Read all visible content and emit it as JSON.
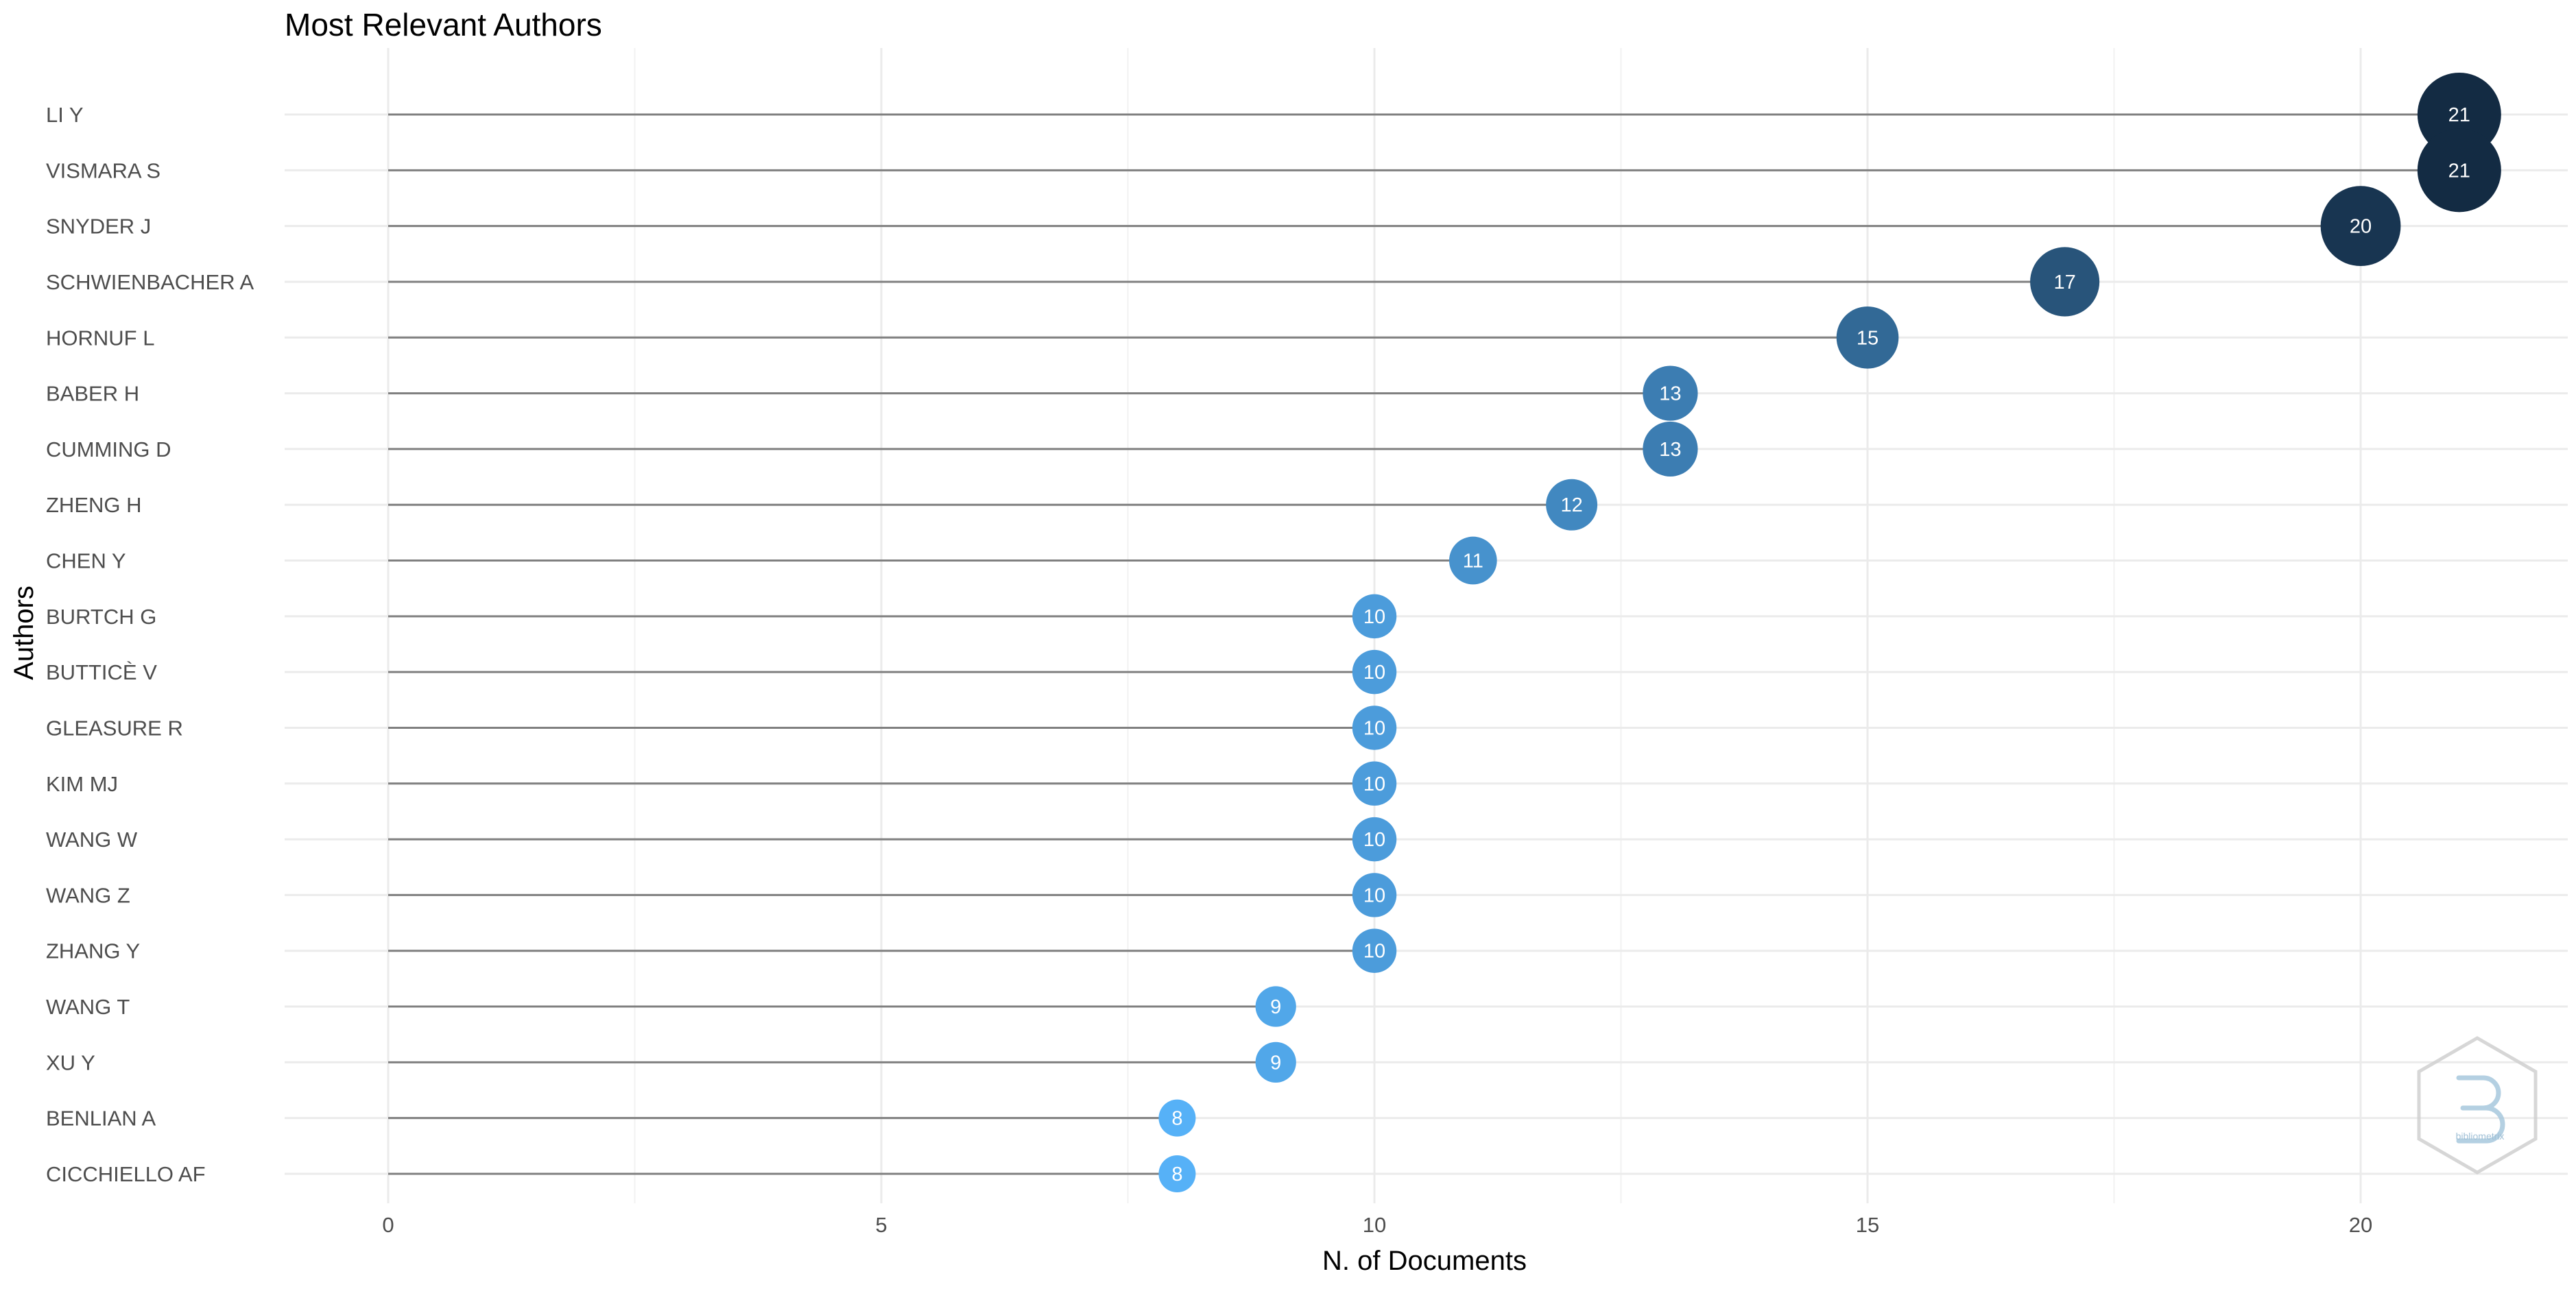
{
  "chart_data": {
    "type": "lollipop",
    "title": "Most Relevant Authors",
    "xlabel": "N. of Documents",
    "ylabel": "Authors",
    "xlim": [
      -1.05,
      22.1
    ],
    "x_ticks": [
      0,
      5,
      10,
      15,
      20
    ],
    "grid": true,
    "legend": "none",
    "color_low": "#56B1F7",
    "color_high": "#132B43",
    "stem_color": "#808080",
    "categories": [
      "LI Y",
      "VISMARA S",
      "SNYDER J",
      "SCHWIENBACHER A",
      "HORNUF L",
      "BABER H",
      "CUMMING D",
      "ZHENG H",
      "CHEN Y",
      "BURTCH G",
      "BUTTICÈ V",
      "GLEASURE R",
      "KIM MJ",
      "WANG W",
      "WANG Z",
      "ZHANG Y",
      "WANG T",
      "XU Y",
      "BENLIAN A",
      "CICCHIELLO AF"
    ],
    "values": [
      21,
      21,
      20,
      17,
      15,
      13,
      13,
      12,
      11,
      10,
      10,
      10,
      10,
      10,
      10,
      10,
      9,
      9,
      8,
      8
    ]
  },
  "watermark": {
    "logo_icon": "bibliometrix-hexagon-logo",
    "text": "bibliometrix"
  }
}
